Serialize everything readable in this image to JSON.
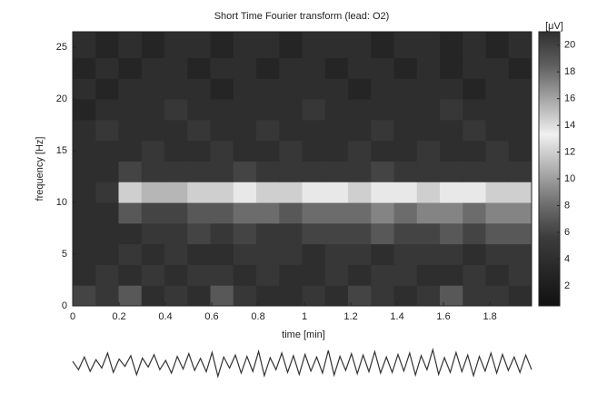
{
  "chart_data": [
    {
      "type": "heatmap",
      "title": "Short Time Fourier transform (lead: O2)",
      "x_label": "time [min]",
      "y_label": "frequency [Hz]",
      "colorbar_label": "[μV]",
      "xlim": [
        0,
        1.98
      ],
      "ylim": [
        0,
        26.5
      ],
      "xticks": [
        0,
        0.2,
        0.4,
        0.6,
        0.8,
        1,
        1.2,
        1.4,
        1.6,
        1.8
      ],
      "yticks": [
        0,
        5,
        10,
        15,
        20,
        25
      ],
      "clim": [
        0.5,
        21
      ],
      "cticks": [
        2,
        4,
        6,
        8,
        10,
        12,
        14,
        16,
        18,
        20
      ],
      "colormap": [
        "#111111",
        "#262626",
        "#3c3c3c",
        "#707070",
        "#b0b0b0",
        "#f0f0f0",
        "#a8a8a8",
        "#606060",
        "#303030"
      ],
      "x_edges": [
        0,
        0.099,
        0.198,
        0.297,
        0.396,
        0.495,
        0.594,
        0.693,
        0.792,
        0.891,
        0.99,
        1.089,
        1.188,
        1.287,
        1.386,
        1.485,
        1.584,
        1.683,
        1.782,
        1.881,
        1.98
      ],
      "y_edges": [
        0,
        2,
        4,
        6,
        8,
        10,
        12,
        14,
        16,
        18,
        20,
        22,
        24,
        26.5
      ],
      "z": [
        [
          6,
          5,
          7,
          4,
          5,
          4,
          7,
          5,
          4,
          4,
          5,
          4,
          6,
          5,
          4,
          5,
          7,
          5,
          5,
          4
        ],
        [
          4,
          5,
          4,
          5,
          4,
          5,
          5,
          4,
          5,
          4,
          4,
          5,
          4,
          5,
          5,
          4,
          4,
          5,
          4,
          5
        ],
        [
          4,
          4,
          5,
          4,
          5,
          4,
          4,
          5,
          5,
          5,
          4,
          5,
          5,
          4,
          5,
          5,
          5,
          4,
          5,
          5
        ],
        [
          4,
          4,
          4,
          5,
          5,
          6,
          5,
          6,
          5,
          5,
          6,
          6,
          6,
          7,
          6,
          6,
          7,
          6,
          7,
          7
        ],
        [
          4,
          4,
          7,
          6,
          6,
          7,
          7,
          8,
          8,
          7,
          8,
          8,
          8,
          9,
          8,
          9,
          9,
          8,
          9,
          9
        ],
        [
          4,
          5,
          12,
          11,
          11,
          12,
          12,
          13,
          12,
          12,
          13,
          13,
          12,
          13,
          13,
          12,
          13,
          13,
          12,
          12
        ],
        [
          4,
          4,
          6,
          5,
          5,
          5,
          5,
          6,
          5,
          5,
          5,
          5,
          5,
          6,
          5,
          5,
          5,
          5,
          5,
          5
        ],
        [
          4,
          4,
          4,
          5,
          4,
          4,
          5,
          4,
          4,
          5,
          4,
          4,
          5,
          4,
          4,
          5,
          4,
          4,
          5,
          4
        ],
        [
          4,
          5,
          4,
          4,
          4,
          5,
          4,
          4,
          5,
          4,
          4,
          4,
          4,
          5,
          4,
          4,
          4,
          5,
          4,
          4
        ],
        [
          3,
          4,
          4,
          4,
          5,
          4,
          4,
          4,
          4,
          4,
          5,
          4,
          4,
          4,
          4,
          4,
          5,
          4,
          4,
          4
        ],
        [
          4,
          3,
          4,
          4,
          4,
          4,
          3,
          4,
          4,
          4,
          4,
          4,
          3,
          4,
          4,
          4,
          4,
          3,
          4,
          4
        ],
        [
          3,
          4,
          3,
          4,
          4,
          3,
          4,
          4,
          3,
          4,
          4,
          3,
          4,
          4,
          3,
          4,
          3,
          4,
          4,
          3
        ],
        [
          4,
          3,
          4,
          3,
          4,
          4,
          3,
          4,
          4,
          3,
          4,
          4,
          4,
          3,
          4,
          4,
          3,
          4,
          3,
          4
        ]
      ]
    },
    {
      "type": "trace",
      "color": "#333333",
      "ylim": [
        -60,
        60
      ],
      "values": [
        5,
        -20,
        18,
        -25,
        10,
        -15,
        30,
        -28,
        12,
        -10,
        22,
        -35,
        15,
        -12,
        25,
        -20,
        8,
        -30,
        20,
        -18,
        28,
        -22,
        14,
        -26,
        32,
        -40,
        18,
        -15,
        24,
        -30,
        20,
        -25,
        35,
        -38,
        16,
        -20,
        30,
        -28,
        22,
        -34,
        26,
        -24,
        18,
        -30,
        38,
        -36,
        20,
        -22,
        28,
        -32,
        24,
        -26,
        34,
        -30,
        18,
        -28,
        26,
        -24,
        30,
        -36,
        22,
        -20,
        40,
        -34,
        16,
        -28,
        32,
        -26,
        24,
        -38,
        20,
        -24,
        30,
        -30,
        26,
        -22,
        18,
        -28,
        24,
        -20
      ]
    }
  ]
}
